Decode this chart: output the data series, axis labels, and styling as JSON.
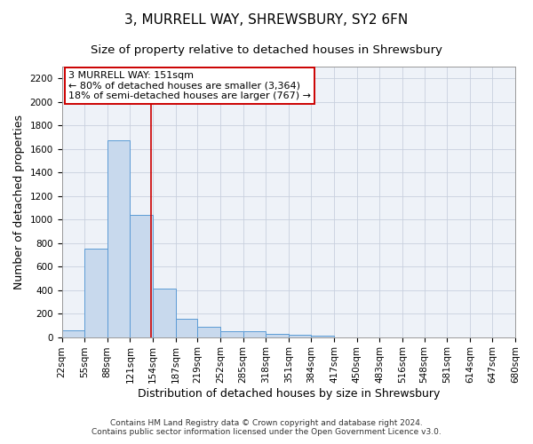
{
  "title": "3, MURRELL WAY, SHREWSBURY, SY2 6FN",
  "subtitle": "Size of property relative to detached houses in Shrewsbury",
  "xlabel": "Distribution of detached houses by size in Shrewsbury",
  "ylabel": "Number of detached properties",
  "footnote1": "Contains HM Land Registry data © Crown copyright and database right 2024.",
  "footnote2": "Contains public sector information licensed under the Open Government Licence v3.0.",
  "bin_edges": [
    22,
    55,
    88,
    121,
    154,
    187,
    219,
    252,
    285,
    318,
    351,
    384,
    417,
    450,
    483,
    516,
    548,
    581,
    614,
    647,
    680
  ],
  "bar_heights": [
    55,
    750,
    1670,
    1040,
    410,
    155,
    90,
    50,
    50,
    30,
    20,
    15,
    0,
    0,
    0,
    0,
    0,
    0,
    0,
    0
  ],
  "bar_facecolor": "#c8d9ed",
  "bar_edgecolor": "#5b9bd5",
  "vline_x": 151,
  "vline_color": "#cc0000",
  "ylim": [
    0,
    2300
  ],
  "yticks": [
    0,
    200,
    400,
    600,
    800,
    1000,
    1200,
    1400,
    1600,
    1800,
    2000,
    2200
  ],
  "annotation_title": "3 MURRELL WAY: 151sqm",
  "annotation_line1": "← 80% of detached houses are smaller (3,364)",
  "annotation_line2": "18% of semi-detached houses are larger (767) →",
  "annotation_box_color": "#cc0000",
  "grid_color": "#c8d0de",
  "background_color": "#eef2f8",
  "title_fontsize": 11,
  "subtitle_fontsize": 9.5,
  "axis_label_fontsize": 9,
  "tick_fontsize": 7.5,
  "annotation_fontsize": 8,
  "footnote_fontsize": 6.5
}
